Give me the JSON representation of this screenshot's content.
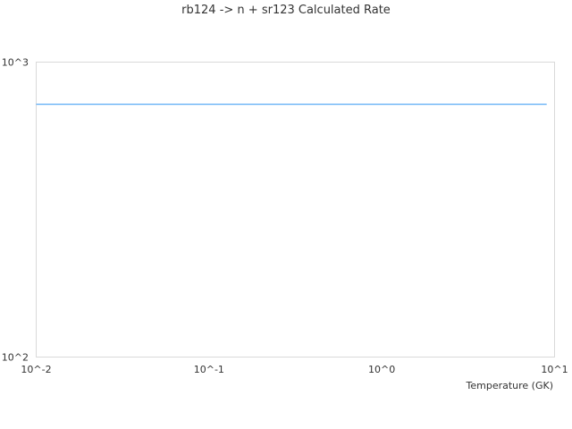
{
  "chart_data": {
    "type": "line",
    "title": "rb124 -> n + sr123 Calculated Rate",
    "xlabel": "Temperature (GK)",
    "ylabel": "",
    "x_scale": "log",
    "y_scale": "log",
    "xlim": [
      0.01,
      10
    ],
    "ylim": [
      100,
      1000
    ],
    "x_ticks": [
      "10^-2",
      "10^-1",
      "10^0",
      "10^1"
    ],
    "y_ticks": [
      "10^2",
      "10^3"
    ],
    "grid": false,
    "series": [
      {
        "color": "#5aabf5",
        "x": [
          0.01,
          9
        ],
        "y": [
          720,
          720
        ]
      }
    ]
  }
}
